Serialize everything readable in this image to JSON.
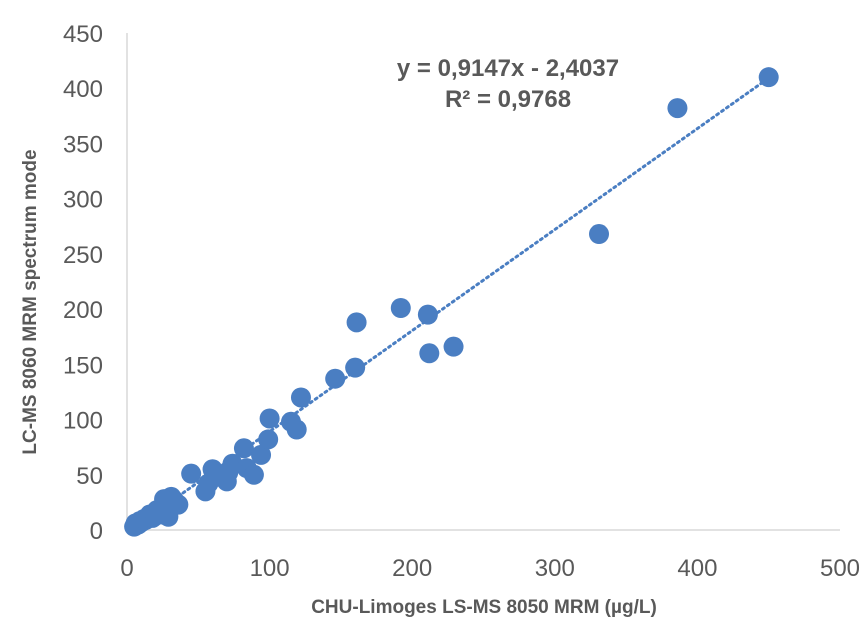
{
  "chart_data": {
    "type": "scatter",
    "xlabel": "CHU-Limoges  LS-MS 8050 MRM (µg/L)",
    "ylabel": "LC-MS 8060 MRM  spectrum mode",
    "xlim": [
      0,
      500
    ],
    "ylim": [
      0,
      450
    ],
    "x_ticks": [
      "0",
      "100",
      "200",
      "300",
      "400",
      "500"
    ],
    "y_ticks": [
      "0",
      "50",
      "100",
      "150",
      "200",
      "250",
      "300",
      "350",
      "400",
      "450"
    ],
    "grid": false,
    "marker_color": "#4a7ec2",
    "trendline": {
      "style": "dotted",
      "slope": 0.9147,
      "intercept": -2.4037,
      "x_range": [
        5,
        450
      ],
      "color": "#4a7ec2"
    },
    "annotations": {
      "equation": "y = 0,9147x - 2,4037",
      "r_squared": "R² = 0,9768"
    },
    "points": [
      {
        "x": 5,
        "y": 3
      },
      {
        "x": 6,
        "y": 6
      },
      {
        "x": 8,
        "y": 5
      },
      {
        "x": 9,
        "y": 8
      },
      {
        "x": 10,
        "y": 7
      },
      {
        "x": 12,
        "y": 10
      },
      {
        "x": 13,
        "y": 9
      },
      {
        "x": 15,
        "y": 12
      },
      {
        "x": 16,
        "y": 14
      },
      {
        "x": 18,
        "y": 11
      },
      {
        "x": 19,
        "y": 15
      },
      {
        "x": 20,
        "y": 13
      },
      {
        "x": 21,
        "y": 18
      },
      {
        "x": 23,
        "y": 17
      },
      {
        "x": 24,
        "y": 20
      },
      {
        "x": 25,
        "y": 14
      },
      {
        "x": 26,
        "y": 28
      },
      {
        "x": 28,
        "y": 22
      },
      {
        "x": 29,
        "y": 12
      },
      {
        "x": 30,
        "y": 25
      },
      {
        "x": 31,
        "y": 30
      },
      {
        "x": 33,
        "y": 27
      },
      {
        "x": 34,
        "y": 24
      },
      {
        "x": 36,
        "y": 23
      },
      {
        "x": 45,
        "y": 51
      },
      {
        "x": 55,
        "y": 35
      },
      {
        "x": 57,
        "y": 42
      },
      {
        "x": 60,
        "y": 55
      },
      {
        "x": 62,
        "y": 48
      },
      {
        "x": 70,
        "y": 44
      },
      {
        "x": 71,
        "y": 52
      },
      {
        "x": 74,
        "y": 60
      },
      {
        "x": 82,
        "y": 74
      },
      {
        "x": 84,
        "y": 56
      },
      {
        "x": 89,
        "y": 50
      },
      {
        "x": 94,
        "y": 68
      },
      {
        "x": 99,
        "y": 82
      },
      {
        "x": 100,
        "y": 101
      },
      {
        "x": 115,
        "y": 98
      },
      {
        "x": 119,
        "y": 91
      },
      {
        "x": 122,
        "y": 120
      },
      {
        "x": 146,
        "y": 137
      },
      {
        "x": 160,
        "y": 147
      },
      {
        "x": 161,
        "y": 188
      },
      {
        "x": 192,
        "y": 201
      },
      {
        "x": 211,
        "y": 195
      },
      {
        "x": 212,
        "y": 160
      },
      {
        "x": 229,
        "y": 166
      },
      {
        "x": 331,
        "y": 268
      },
      {
        "x": 386,
        "y": 382
      },
      {
        "x": 450,
        "y": 410
      }
    ]
  }
}
